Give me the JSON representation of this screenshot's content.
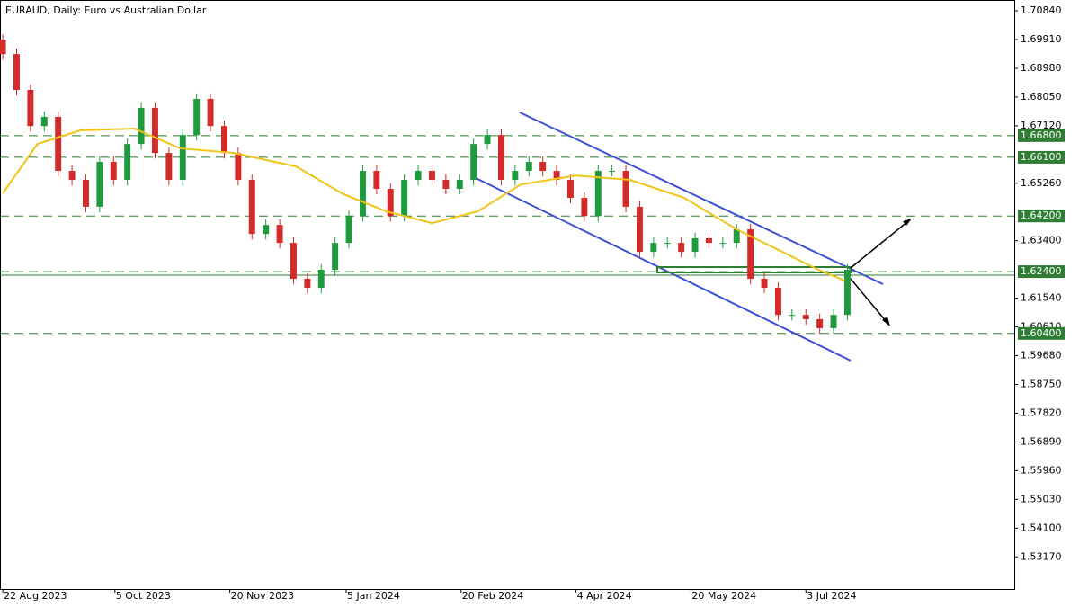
{
  "chart_data": {
    "type": "candlestick",
    "title": "EURAUD, Daily:  Euro vs Australian Dollar",
    "open": [
      1.699,
      1.6944,
      1.6828,
      1.6711,
      1.6741,
      1.6566,
      1.6537,
      1.645,
      1.6595,
      1.6537,
      1.6653,
      1.677,
      1.6624,
      1.6537,
      1.6682,
      1.6799,
      1.6711,
      1.6624,
      1.6537,
      1.6362,
      1.6391,
      1.6333,
      1.6217,
      1.6188,
      1.6246,
      1.6333,
      1.642,
      1.6566,
      1.6508,
      1.642,
      1.6537,
      1.6566,
      1.6537,
      1.6508,
      1.6537,
      1.6653,
      1.6682,
      1.6537,
      1.6566,
      1.6595,
      1.6566,
      1.6537,
      1.6479,
      1.642,
      1.6566,
      1.6566,
      1.645,
      1.6304,
      1.6333,
      1.6333,
      1.6304,
      1.6348,
      1.6333,
      1.6333,
      1.6377,
      1.6217,
      1.6188,
      1.61,
      1.61,
      1.6086,
      1.6057,
      1.61
    ],
    "high": [
      1.7008,
      1.6962,
      1.6846,
      1.6759,
      1.6759,
      1.6584,
      1.6555,
      1.6613,
      1.6613,
      1.6671,
      1.6788,
      1.6788,
      1.6642,
      1.67,
      1.6817,
      1.6817,
      1.6729,
      1.6642,
      1.6555,
      1.6409,
      1.6409,
      1.6351,
      1.6235,
      1.6264,
      1.6351,
      1.6438,
      1.6584,
      1.6584,
      1.6526,
      1.6555,
      1.6584,
      1.6584,
      1.6555,
      1.6555,
      1.6671,
      1.67,
      1.67,
      1.6584,
      1.6613,
      1.6613,
      1.6584,
      1.6555,
      1.6497,
      1.6584,
      1.6584,
      1.6584,
      1.6468,
      1.6351,
      1.6351,
      1.6351,
      1.6366,
      1.6366,
      1.6351,
      1.6395,
      1.6395,
      1.6235,
      1.6206,
      1.6118,
      1.6118,
      1.6104,
      1.6118,
      1.6264
    ],
    "low": [
      1.6926,
      1.681,
      1.6693,
      1.6693,
      1.6548,
      1.6519,
      1.6432,
      1.6432,
      1.6519,
      1.6519,
      1.6635,
      1.6606,
      1.6519,
      1.6519,
      1.6664,
      1.6693,
      1.6606,
      1.6519,
      1.6344,
      1.6344,
      1.6315,
      1.6199,
      1.617,
      1.617,
      1.6228,
      1.6315,
      1.6402,
      1.649,
      1.6402,
      1.6402,
      1.6519,
      1.6519,
      1.649,
      1.649,
      1.6519,
      1.6635,
      1.6519,
      1.6519,
      1.6548,
      1.6548,
      1.6519,
      1.6461,
      1.6402,
      1.6402,
      1.6548,
      1.6432,
      1.6286,
      1.6286,
      1.6315,
      1.6286,
      1.6286,
      1.6315,
      1.6315,
      1.6315,
      1.6199,
      1.617,
      1.6082,
      1.6082,
      1.6068,
      1.6039,
      1.6039,
      1.6082
    ],
    "close": [
      1.6944,
      1.6828,
      1.6711,
      1.6741,
      1.6566,
      1.6537,
      1.645,
      1.6595,
      1.6537,
      1.6653,
      1.677,
      1.6624,
      1.6537,
      1.6682,
      1.6799,
      1.6711,
      1.6624,
      1.6537,
      1.6362,
      1.6391,
      1.6333,
      1.6217,
      1.6188,
      1.6246,
      1.6333,
      1.642,
      1.6566,
      1.6508,
      1.642,
      1.6537,
      1.6566,
      1.6537,
      1.6508,
      1.6537,
      1.6653,
      1.6682,
      1.6537,
      1.6566,
      1.6595,
      1.6566,
      1.6537,
      1.6479,
      1.642,
      1.6566,
      1.6566,
      1.645,
      1.6304,
      1.6333,
      1.6333,
      1.6304,
      1.6348,
      1.6333,
      1.6333,
      1.6377,
      1.6217,
      1.6188,
      1.61,
      1.61,
      1.6086,
      1.6057,
      1.61,
      1.6246
    ],
    "up_color": "#1e9b3c",
    "down_color": "#d42a2a",
    "ma": {
      "color": "#f0c419",
      "x": [
        0,
        2.5,
        5.6,
        9.5,
        12.8,
        16.7,
        21.2,
        24.5,
        27.7,
        31,
        34.3,
        37.4,
        41.4,
        45.3,
        49.2,
        53,
        56.3,
        58.9,
        60.8
      ],
      "values": [
        1.6493,
        1.6653,
        1.6697,
        1.6703,
        1.6639,
        1.6624,
        1.658,
        1.6493,
        1.6435,
        1.6397,
        1.6435,
        1.6522,
        1.6551,
        1.6537,
        1.6479,
        1.6377,
        1.6304,
        1.6246,
        1.6211
      ]
    },
    "levels": [
      {
        "value": 1.668,
        "label": "1.66800"
      },
      {
        "value": 1.661,
        "label": "1.66100"
      },
      {
        "value": 1.642,
        "label": "1.64200"
      },
      {
        "value": 1.624,
        "label": "1.62400"
      },
      {
        "value": 1.604,
        "label": "1.60400"
      }
    ],
    "level_color": "#2e7d32",
    "xlim": [
      -0.2,
      73.05
    ],
    "xticks": [
      {
        "value": 0,
        "label": "22 Aug 2023"
      },
      {
        "value": 8.1,
        "label": "5 Oct 2023"
      },
      {
        "value": 16.4,
        "label": "20 Nov 2023"
      },
      {
        "value": 24.8,
        "label": "5 Jan 2024"
      },
      {
        "value": 33.1,
        "label": "20 Feb 2024"
      },
      {
        "value": 41.4,
        "label": "4 Apr 2024"
      },
      {
        "value": 49.7,
        "label": "20 May 2024"
      },
      {
        "value": 58,
        "label": "3 Jul 2024"
      }
    ],
    "ylim": [
      1.5213,
      1.7119
    ],
    "yticks": [
      {
        "value": 1.7084,
        "label": "1.70840"
      },
      {
        "value": 1.6991,
        "label": "1.69910"
      },
      {
        "value": 1.6898,
        "label": "1.68980"
      },
      {
        "value": 1.6805,
        "label": "1.68050"
      },
      {
        "value": 1.6712,
        "label": "1.67120"
      },
      {
        "value": 1.6526,
        "label": "1.65260"
      },
      {
        "value": 1.634,
        "label": "1.63400"
      },
      {
        "value": 1.6154,
        "label": "1.61540"
      },
      {
        "value": 1.6061,
        "label": "1.60610"
      },
      {
        "value": 1.5968,
        "label": "1.59680"
      },
      {
        "value": 1.5875,
        "label": "1.58750"
      },
      {
        "value": 1.5782,
        "label": "1.57820"
      },
      {
        "value": 1.5689,
        "label": "1.56890"
      },
      {
        "value": 1.5596,
        "label": "1.55960"
      },
      {
        "value": 1.5503,
        "label": "1.55030"
      },
      {
        "value": 1.541,
        "label": "1.54100"
      },
      {
        "value": 1.5317,
        "label": "1.53170"
      }
    ]
  }
}
